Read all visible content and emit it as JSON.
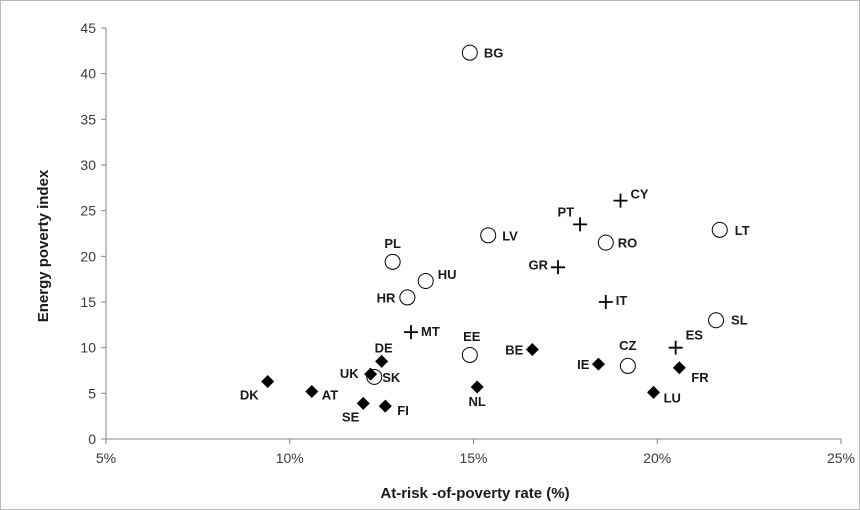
{
  "chart_data": {
    "type": "scatter",
    "title": "",
    "xlabel": "At-risk -of-poverty rate (%)",
    "ylabel": "Energy poverty index",
    "xlim": [
      5,
      25
    ],
    "ylim": [
      0,
      45
    ],
    "x_ticks": [
      5,
      10,
      15,
      20,
      25
    ],
    "x_tick_labels": [
      "5%",
      "10%",
      "15%",
      "20%",
      "25%"
    ],
    "y_ticks": [
      0,
      5,
      10,
      15,
      20,
      25,
      30,
      35,
      40,
      45
    ],
    "y_tick_labels": [
      "0",
      "5",
      "10",
      "15",
      "20",
      "25",
      "30",
      "35",
      "40",
      "45"
    ],
    "grid": "none",
    "legend": "none",
    "marker_colors": {
      "stroke": "#000000",
      "fill_open": "#ffffff",
      "fill_solid": "#000000"
    },
    "series": [
      {
        "marker": "open-circle",
        "points": [
          {
            "label": "BG",
            "x": 14.9,
            "y": 42.3
          },
          {
            "label": "LV",
            "x": 15.4,
            "y": 22.3
          },
          {
            "label": "RO",
            "x": 18.6,
            "y": 21.5
          },
          {
            "label": "LT",
            "x": 21.7,
            "y": 22.9
          },
          {
            "label": "PL",
            "x": 12.8,
            "y": 19.4
          },
          {
            "label": "HU",
            "x": 13.7,
            "y": 17.3
          },
          {
            "label": "HR",
            "x": 13.2,
            "y": 15.5
          },
          {
            "label": "SL",
            "x": 21.6,
            "y": 13.0
          },
          {
            "label": "EE",
            "x": 14.9,
            "y": 9.2
          },
          {
            "label": "CZ",
            "x": 19.2,
            "y": 8.0
          },
          {
            "label": "SK",
            "x": 12.3,
            "y": 6.8
          }
        ]
      },
      {
        "marker": "plus",
        "points": [
          {
            "label": "CY",
            "x": 19.0,
            "y": 26.1
          },
          {
            "label": "PT",
            "x": 17.9,
            "y": 23.5
          },
          {
            "label": "GR",
            "x": 17.3,
            "y": 18.8
          },
          {
            "label": "IT",
            "x": 18.6,
            "y": 15.0
          },
          {
            "label": "MT",
            "x": 13.3,
            "y": 11.7
          },
          {
            "label": "ES",
            "x": 20.5,
            "y": 10.0
          }
        ]
      },
      {
        "marker": "filled-diamond",
        "points": [
          {
            "label": "DE",
            "x": 12.5,
            "y": 8.5
          },
          {
            "label": "BE",
            "x": 16.6,
            "y": 9.8
          },
          {
            "label": "IE",
            "x": 18.4,
            "y": 8.2
          },
          {
            "label": "FR",
            "x": 20.6,
            "y": 7.8
          },
          {
            "label": "LU",
            "x": 19.9,
            "y": 5.1
          },
          {
            "label": "NL",
            "x": 15.1,
            "y": 5.7
          },
          {
            "label": "DK",
            "x": 9.4,
            "y": 6.3
          },
          {
            "label": "AT",
            "x": 10.6,
            "y": 5.2
          },
          {
            "label": "SE",
            "x": 12.0,
            "y": 3.9
          },
          {
            "label": "FI",
            "x": 12.6,
            "y": 3.6
          },
          {
            "label": "UK",
            "x": 12.2,
            "y": 7.1
          }
        ]
      }
    ]
  }
}
